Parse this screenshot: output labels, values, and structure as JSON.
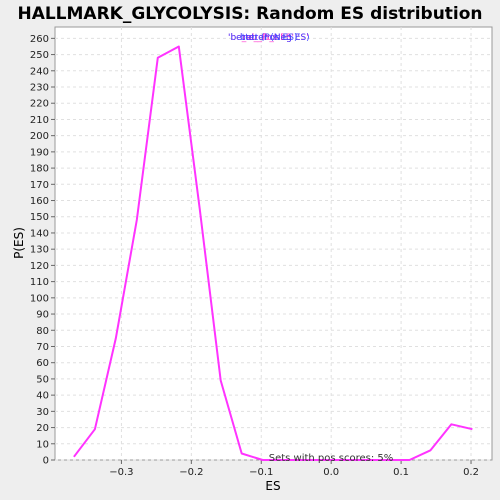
{
  "chart_data": {
    "type": "line",
    "title": "HALLMARK_GLYCOLYSIS: Random ES distribution",
    "xlabel": "ES",
    "ylabel": "P(ES)",
    "xlim": [
      -0.395,
      0.23
    ],
    "ylim": [
      0,
      267
    ],
    "x_ticks": [
      -0.3,
      -0.2,
      -0.1,
      0.0,
      0.1,
      0.2
    ],
    "x_tick_labels": [
      "−0.3",
      "−0.2",
      "−0.1",
      "0.0",
      "0.1",
      "0.2"
    ],
    "y_ticks": [
      0,
      10,
      20,
      30,
      40,
      50,
      60,
      70,
      80,
      90,
      100,
      110,
      120,
      130,
      140,
      150,
      160,
      170,
      180,
      190,
      200,
      210,
      220,
      230,
      240,
      250,
      260
    ],
    "grid": true,
    "legend": {
      "placement": "top-center",
      "entries": [
        {
          "label": "'be_ob_Pos ES'",
          "color": "#ff33cc"
        },
        {
          "label": "'no_ob_Neg ES'",
          "color": "#ff33cc"
        },
        {
          "label": "'better (Pos ES)'",
          "color": "#4444ff"
        },
        {
          "label": "better (Neg ES)",
          "color": "#4444ff"
        }
      ]
    },
    "annotation": "Sets with pos scores: 5%",
    "series": [
      {
        "color": "#ff33ff",
        "x": [
          -0.368,
          -0.338,
          -0.308,
          -0.278,
          -0.248,
          -0.218,
          -0.188,
          -0.158,
          -0.128,
          -0.098,
          -0.068,
          -0.038,
          -0.008,
          0.022,
          0.052,
          0.082,
          0.112,
          0.142,
          0.172,
          0.202
        ],
        "y": [
          2,
          19,
          75,
          148,
          248,
          255,
          155,
          49,
          4,
          0,
          0,
          0,
          0,
          0,
          0,
          0,
          0,
          6,
          22,
          19
        ]
      }
    ]
  }
}
